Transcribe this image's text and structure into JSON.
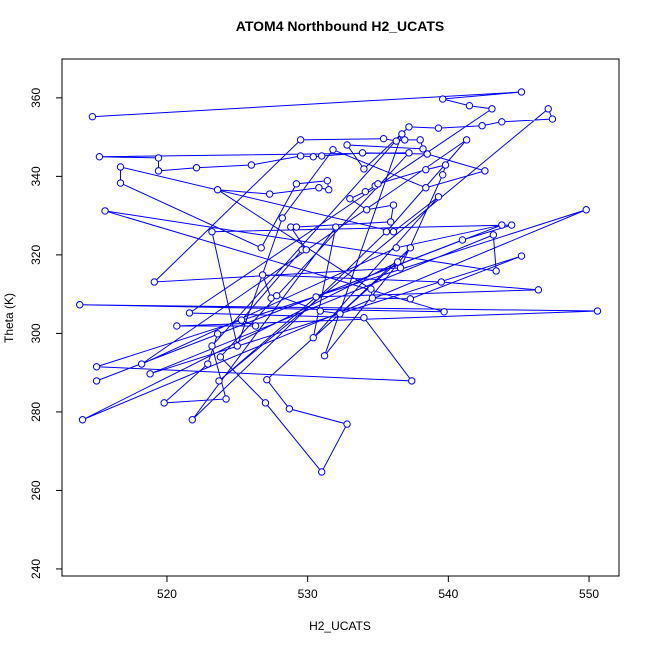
{
  "chart_data": {
    "type": "line",
    "title": "ATOM4 Northbound H2_UCATS",
    "x_label": "H2_UCATS",
    "y_label": "Theta (K)",
    "markers": true,
    "grid": false,
    "xlim": [
      512.54,
      552.13
    ],
    "ylim": [
      238.2,
      369.9
    ],
    "xticks": [
      520,
      530,
      540,
      550
    ],
    "yticks": [
      240,
      260,
      280,
      300,
      320,
      340,
      360
    ],
    "series": [
      {
        "color": "#0000ff",
        "x": [
          514.7,
          545.2,
          539.6,
          541.5,
          543.1,
          521.6,
          534.0,
          537.4,
          515.0,
          549.8,
          514.0,
          536.4,
          527.1,
          528.7,
          532.8,
          531.0,
          527.0,
          523.8,
          537.2,
          515.2,
          519.4,
          519.4,
          522.1,
          526.0,
          529.5,
          530.4,
          531.0,
          533.9,
          538.5,
          542.6,
          538.4,
          531.8,
          528.2,
          525.0,
          523.2,
          544.5,
          541.0,
          515.0,
          543.8,
          536.3,
          518.2,
          541.3,
          535.6,
          521.8,
          532.0,
          530.4,
          539.3,
          536.1,
          516.7,
          516.7,
          526.7,
          529.2,
          531.4,
          531.5,
          530.8,
          527.3,
          523.6,
          534.5,
          534.6,
          537.3,
          545.2,
          518.8,
          543.2,
          543.4,
          515.6,
          539.7,
          513.8,
          550.6,
          520.7,
          526.3,
          525.3,
          529.6,
          529.9,
          528.8,
          529.2,
          535.9,
          536.1,
          534.2,
          533.0,
          534.1,
          534.8,
          535.0,
          538.4,
          539.8,
          539.6,
          536.6,
          519.1,
          529.5,
          535.4,
          536.3,
          536.9,
          538.0,
          538.2,
          532.8,
          534.0,
          537.2,
          539.3,
          542.4,
          543.8,
          547.4,
          547.1,
          523.7,
          530.6,
          546.4,
          539.5,
          526.8,
          527.4,
          527.8,
          530.9,
          532.3,
          537.3,
          531.2,
          536.7,
          523.2,
          524.2,
          519.8,
          522.9,
          523.6
        ],
        "y": [
          355.2,
          361.5,
          359.7,
          358.0,
          357.2,
          305.2,
          304.0,
          287.9,
          291.5,
          331.5,
          278.0,
          318.2,
          288.2,
          280.8,
          276.9,
          264.7,
          282.3,
          294.0,
          346.0,
          345.0,
          344.7,
          341.4,
          342.2,
          342.9,
          345.2,
          345.0,
          345.2,
          346.0,
          345.7,
          341.4,
          337.1,
          346.8,
          329.4,
          296.8,
          325.9,
          327.6,
          323.8,
          287.9,
          327.6,
          321.8,
          292.2,
          349.3,
          325.9,
          278.0,
          327.1,
          298.9,
          334.8,
          325.9,
          342.4,
          338.3,
          321.8,
          338.1,
          338.9,
          336.6,
          337.1,
          335.5,
          336.6,
          311.3,
          309.0,
          308.8,
          319.7,
          289.7,
          325.1,
          315.9,
          331.2,
          305.5,
          307.3,
          305.7,
          301.9,
          301.9,
          303.4,
          321.3,
          321.3,
          327.1,
          327.1,
          328.4,
          332.7,
          331.5,
          334.3,
          336.1,
          337.6,
          338.1,
          341.7,
          342.9,
          340.4,
          316.7,
          313.1,
          349.3,
          349.6,
          349.0,
          349.3,
          349.3,
          347.0,
          348.0,
          341.9,
          352.6,
          352.3,
          352.9,
          353.9,
          354.6,
          357.2,
          287.9,
          309.3,
          311.1,
          313.1,
          314.9,
          309.0,
          309.6,
          305.7,
          305.0,
          321.8,
          294.3,
          350.8,
          296.8,
          283.3,
          282.3,
          292.2,
          299.9
        ]
      }
    ]
  }
}
